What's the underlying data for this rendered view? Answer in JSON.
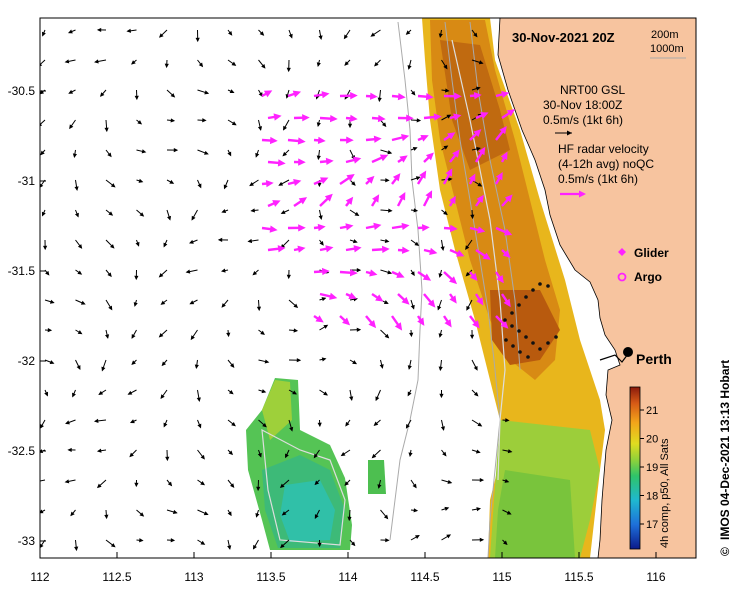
{
  "title": "30-Nov-2021 20Z",
  "depth_contours": [
    "200m",
    "1000m"
  ],
  "model": {
    "name": "NRT00 GSL",
    "time": "30-Nov 18:00Z",
    "scale": "0.5m/s (1kt 6h)"
  },
  "radar": {
    "line1": "HF radar velocity",
    "line2": "(4-12h avg) noQC",
    "scale": "0.5m/s (1kt 6h)"
  },
  "legend": {
    "glider": "Glider",
    "argo": "Argo"
  },
  "city": "Perth",
  "colorbar": {
    "ticks": [
      "17",
      "18",
      "19",
      "20",
      "21"
    ],
    "label": "4h comp, p50, All Sats"
  },
  "credit": "IMOS 04-Dec-2021 13:13 Hobart",
  "copyright": "©",
  "axes": {
    "x_ticks": [
      "112",
      "112.5",
      "113",
      "113.5",
      "114",
      "114.5",
      "115",
      "115.5",
      "116"
    ],
    "y_ticks": [
      "-30.5",
      "-31",
      "-31.5",
      "-32",
      "-32.5",
      "-33"
    ]
  },
  "colors": {
    "land": "#f7c49f",
    "radar_arrows": "#ff22ff",
    "glider_track": "#111111"
  }
}
